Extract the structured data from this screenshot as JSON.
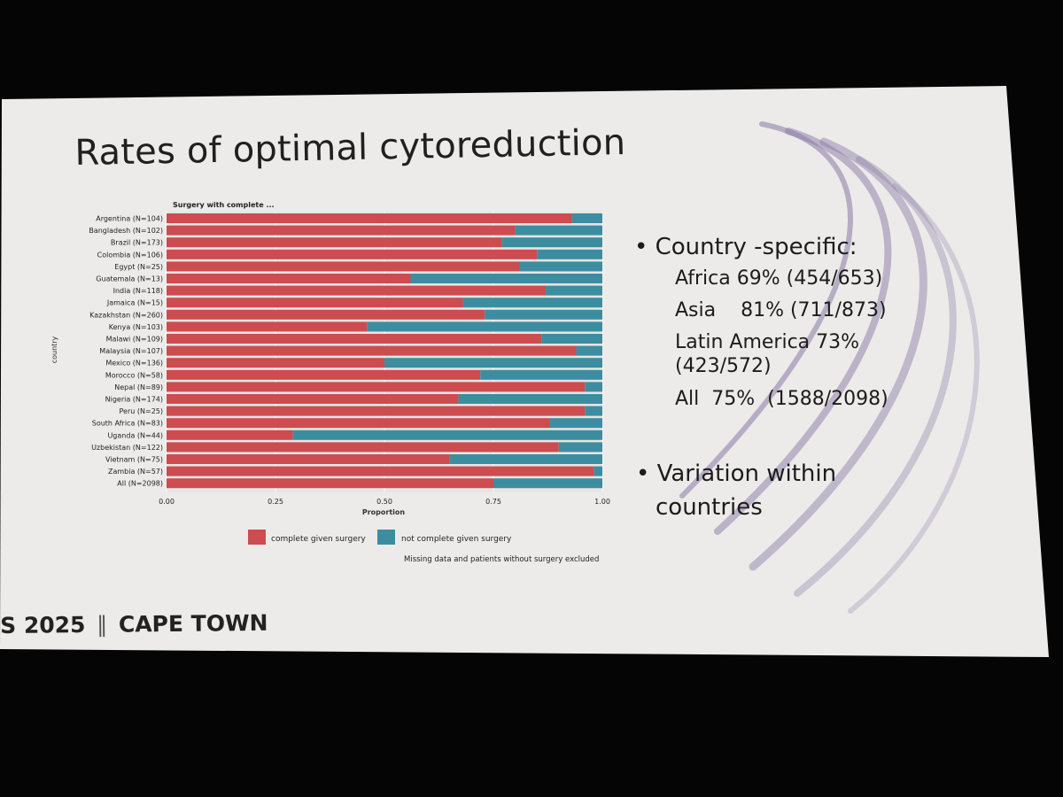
{
  "slide": {
    "title": "Rates of optimal cytoreduction",
    "bullets": {
      "country_specific": "• Country -specific:",
      "lines": [
        "Africa 69% (454/653)",
        "Asia    81% (711/873)",
        "Latin America 73%",
        "(423/572)",
        "All  75%  (1588/2098)"
      ],
      "variation_1": "• Variation within",
      "variation_2": "countries"
    },
    "footer": {
      "left": "S 2025",
      "right": "CAPE TOWN"
    }
  },
  "colors": {
    "complete": "#cc4c4f",
    "not_complete": "#3d8da1",
    "slide_bg": "#ecebe9",
    "swoosh": "#8a7aa6"
  },
  "chart_data": {
    "type": "bar",
    "orientation": "horizontal-stacked-proportion",
    "title": "Surgery with complete ...",
    "xlabel": "Proportion",
    "ylabel": "country",
    "xlim": [
      0,
      1
    ],
    "xticks": [
      "0.00",
      "0.25",
      "0.50",
      "0.75",
      "1.00"
    ],
    "categories": [
      "Argentina (N=104)",
      "Bangladesh (N=102)",
      "Brazil (N=173)",
      "Colombia (N=106)",
      "Egypt (N=25)",
      "Guatemala (N=13)",
      "India (N=118)",
      "Jamaica (N=15)",
      "Kazakhstan (N=260)",
      "Kenya (N=103)",
      "Malawi (N=109)",
      "Malaysia (N=107)",
      "Mexico (N=136)",
      "Morocco (N=58)",
      "Nepal (N=89)",
      "Nigeria (N=174)",
      "Peru (N=25)",
      "South Africa (N=83)",
      "Uganda (N=44)",
      "Uzbekistan (N=122)",
      "Vietnam (N=75)",
      "Zambia (N=57)",
      "All (N=2098)"
    ],
    "series": [
      {
        "name": "complete given surgery",
        "values": [
          0.93,
          0.8,
          0.77,
          0.85,
          0.81,
          0.56,
          0.87,
          0.68,
          0.73,
          0.46,
          0.86,
          0.94,
          0.5,
          0.72,
          0.96,
          0.67,
          0.96,
          0.88,
          0.29,
          0.9,
          0.65,
          0.98,
          0.75
        ]
      },
      {
        "name": "not complete given surgery",
        "values": [
          0.07,
          0.2,
          0.23,
          0.15,
          0.19,
          0.44,
          0.13,
          0.32,
          0.27,
          0.54,
          0.14,
          0.06,
          0.5,
          0.28,
          0.04,
          0.33,
          0.04,
          0.12,
          0.71,
          0.1,
          0.35,
          0.02,
          0.25
        ]
      }
    ],
    "legend": [
      "complete given surgery",
      "not complete given surgery"
    ],
    "legend_position": "bottom",
    "note": "Missing data and patients without surgery excluded"
  }
}
